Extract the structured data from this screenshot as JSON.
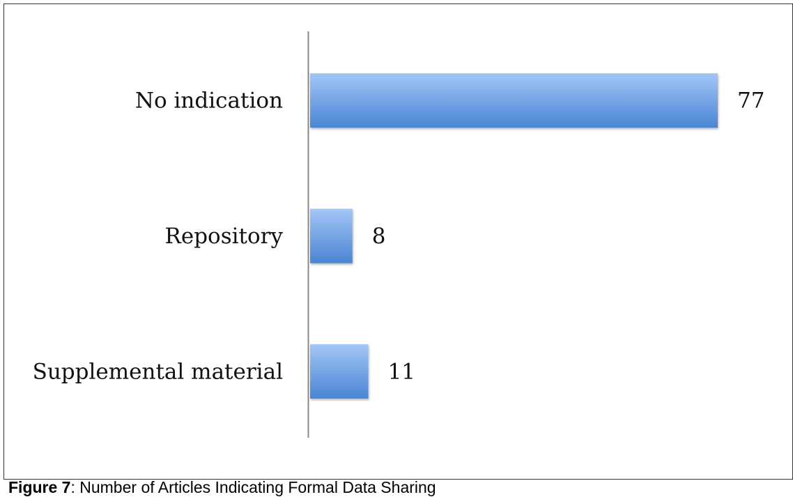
{
  "chart_data": {
    "type": "bar",
    "orientation": "horizontal",
    "categories": [
      "No indication",
      "Repository",
      "Supplemental material"
    ],
    "values": [
      77,
      8,
      11
    ],
    "color": "#5b93e0"
  },
  "caption": {
    "label": "Figure 7",
    "text": ": Number of Articles Indicating Formal Data Sharing"
  }
}
